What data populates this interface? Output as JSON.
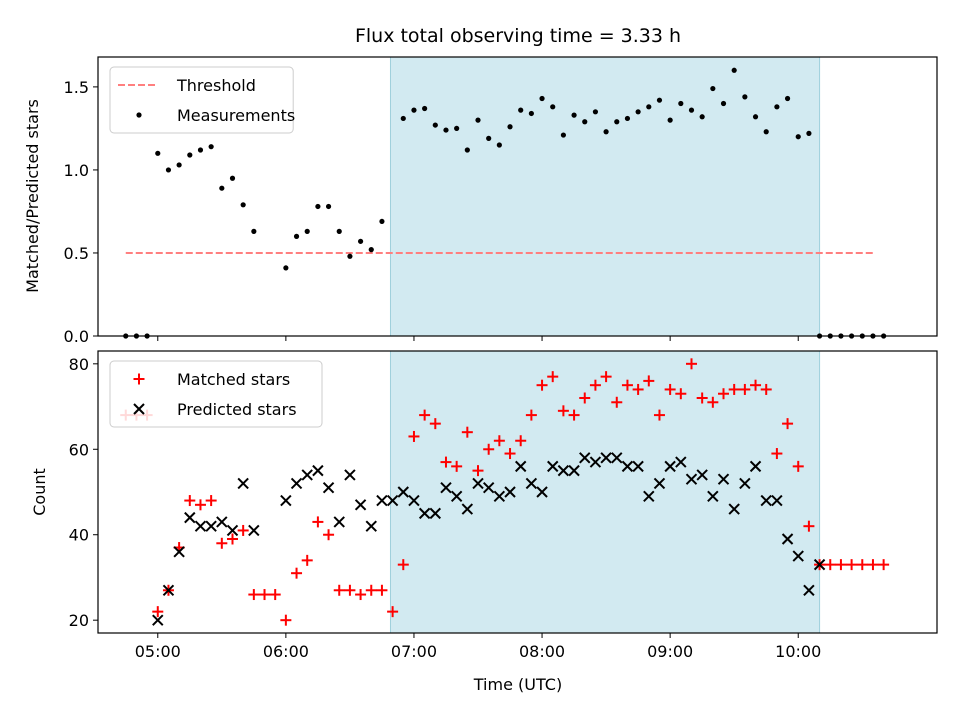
{
  "chart_data": [
    {
      "type": "scatter",
      "title": "Flux total observing time = 3.33 h",
      "xlabel": "",
      "ylabel": "Matched/Predicted stars",
      "ylim": [
        0,
        1.68
      ],
      "yticks": [
        "0.0",
        "0.5",
        "1.0",
        "1.5"
      ],
      "ytick_values": [
        0,
        0.5,
        1.0,
        1.5
      ],
      "xlim": [
        "04:32",
        "11:05"
      ],
      "xticks": [
        "05:00",
        "06:00",
        "07:00",
        "08:00",
        "09:00",
        "10:00"
      ],
      "shaded_interval": [
        "06:49",
        "10:10"
      ],
      "shade_color": "#add8e6",
      "legend_position": "upper-left",
      "series": [
        {
          "name": "Threshold",
          "style": "dashed-line",
          "color": "#ff7f7f",
          "x": [
            "04:45",
            "10:35"
          ],
          "y": [
            0.5,
            0.5
          ]
        },
        {
          "name": "Measurements",
          "style": "dot",
          "color": "#000000",
          "x": [
            "04:45",
            "04:50",
            "04:55",
            "05:00",
            "05:05",
            "05:10",
            "05:15",
            "05:20",
            "05:25",
            "05:30",
            "05:35",
            "05:40",
            "05:45",
            "06:00",
            "06:05",
            "06:10",
            "06:15",
            "06:20",
            "06:25",
            "06:30",
            "06:35",
            "06:40",
            "06:45",
            "06:55",
            "07:00",
            "07:05",
            "07:10",
            "07:15",
            "07:20",
            "07:25",
            "07:30",
            "07:35",
            "07:40",
            "07:45",
            "07:50",
            "07:55",
            "08:00",
            "08:05",
            "08:10",
            "08:15",
            "08:20",
            "08:25",
            "08:30",
            "08:35",
            "08:40",
            "08:45",
            "08:50",
            "08:55",
            "09:00",
            "09:05",
            "09:10",
            "09:15",
            "09:20",
            "09:25",
            "09:30",
            "09:35",
            "09:40",
            "09:45",
            "09:50",
            "09:55",
            "10:00",
            "10:05",
            "10:10",
            "10:15",
            "10:20",
            "10:25",
            "10:30",
            "10:35",
            "10:40"
          ],
          "y": [
            0,
            0,
            0,
            1.1,
            1.0,
            1.03,
            1.09,
            1.12,
            1.14,
            0.89,
            0.95,
            0.79,
            0.63,
            0.41,
            0.6,
            0.63,
            0.78,
            0.78,
            0.63,
            0.48,
            0.57,
            0.52,
            0.69,
            1.31,
            1.36,
            1.37,
            1.27,
            1.24,
            1.25,
            1.12,
            1.3,
            1.19,
            1.15,
            1.26,
            1.36,
            1.34,
            1.43,
            1.38,
            1.21,
            1.33,
            1.29,
            1.35,
            1.23,
            1.29,
            1.31,
            1.35,
            1.38,
            1.42,
            1.3,
            1.4,
            1.36,
            1.32,
            1.49,
            1.4,
            1.6,
            1.44,
            1.32,
            1.23,
            1.38,
            1.43,
            1.2,
            1.22,
            0,
            0,
            0,
            0,
            0,
            0,
            0
          ]
        }
      ]
    },
    {
      "type": "scatter",
      "title": "",
      "xlabel": "Time (UTC)",
      "ylabel": "Count",
      "ylim": [
        17,
        83
      ],
      "yticks": [
        "20",
        "40",
        "60",
        "80"
      ],
      "ytick_values": [
        20,
        40,
        60,
        80
      ],
      "xlim": [
        "04:32",
        "11:05"
      ],
      "xticks": [
        "05:00",
        "06:00",
        "07:00",
        "08:00",
        "09:00",
        "10:00"
      ],
      "shaded_interval": [
        "06:49",
        "10:10"
      ],
      "shade_color": "#add8e6",
      "legend_position": "upper-left",
      "series": [
        {
          "name": "Matched stars",
          "style": "plus",
          "color": "#ff0000",
          "x": [
            "04:45",
            "04:50",
            "04:55",
            "05:00",
            "05:05",
            "05:10",
            "05:15",
            "05:20",
            "05:25",
            "05:30",
            "05:35",
            "05:40",
            "05:45",
            "05:50",
            "05:55",
            "06:00",
            "06:05",
            "06:10",
            "06:15",
            "06:20",
            "06:25",
            "06:30",
            "06:35",
            "06:40",
            "06:45",
            "06:50",
            "06:55",
            "07:00",
            "07:05",
            "07:10",
            "07:15",
            "07:20",
            "07:25",
            "07:30",
            "07:35",
            "07:40",
            "07:45",
            "07:50",
            "07:55",
            "08:00",
            "08:05",
            "08:10",
            "08:15",
            "08:20",
            "08:25",
            "08:30",
            "08:35",
            "08:40",
            "08:45",
            "08:50",
            "08:55",
            "09:00",
            "09:05",
            "09:10",
            "09:15",
            "09:20",
            "09:25",
            "09:30",
            "09:35",
            "09:40",
            "09:45",
            "09:50",
            "09:55",
            "10:00",
            "10:05",
            "10:10",
            "10:15",
            "10:20",
            "10:25",
            "10:30",
            "10:35",
            "10:40"
          ],
          "y": [
            68,
            68,
            68,
            22,
            27,
            37,
            48,
            47,
            48,
            38,
            39,
            41,
            26,
            26,
            26,
            20,
            31,
            34,
            43,
            40,
            27,
            27,
            26,
            27,
            27,
            22,
            33,
            63,
            68,
            66,
            57,
            56,
            64,
            55,
            60,
            62,
            59,
            62,
            68,
            75,
            77,
            69,
            68,
            72,
            75,
            77,
            71,
            75,
            74,
            76,
            68,
            74,
            73,
            80,
            72,
            71,
            73,
            74,
            74,
            75,
            74,
            59,
            66,
            56,
            42,
            33,
            33,
            33,
            33,
            33,
            33,
            33
          ]
        },
        {
          "name": "Predicted stars",
          "style": "x",
          "color": "#000000",
          "x": [
            "05:00",
            "05:05",
            "05:10",
            "05:15",
            "05:20",
            "05:25",
            "05:30",
            "05:35",
            "05:40",
            "05:45",
            "06:00",
            "06:05",
            "06:10",
            "06:15",
            "06:20",
            "06:25",
            "06:30",
            "06:35",
            "06:40",
            "06:45",
            "06:50",
            "06:55",
            "07:00",
            "07:05",
            "07:10",
            "07:15",
            "07:20",
            "07:25",
            "07:30",
            "07:35",
            "07:40",
            "07:45",
            "07:50",
            "07:55",
            "08:00",
            "08:05",
            "08:10",
            "08:15",
            "08:20",
            "08:25",
            "08:30",
            "08:35",
            "08:40",
            "08:45",
            "08:50",
            "08:55",
            "09:00",
            "09:05",
            "09:10",
            "09:15",
            "09:20",
            "09:25",
            "09:30",
            "09:35",
            "09:40",
            "09:45",
            "09:50",
            "09:55",
            "10:00",
            "10:05",
            "10:10"
          ],
          "y": [
            20,
            27,
            36,
            44,
            42,
            42,
            43,
            41,
            52,
            41,
            48,
            52,
            54,
            55,
            51,
            43,
            54,
            47,
            42,
            48,
            48,
            50,
            48,
            45,
            45,
            51,
            49,
            46,
            52,
            51,
            49,
            50,
            56,
            52,
            50,
            56,
            55,
            55,
            58,
            57,
            58,
            58,
            56,
            56,
            49,
            52,
            56,
            57,
            53,
            54,
            49,
            53,
            46,
            52,
            56,
            48,
            48,
            39,
            35,
            27,
            33
          ]
        }
      ]
    }
  ]
}
